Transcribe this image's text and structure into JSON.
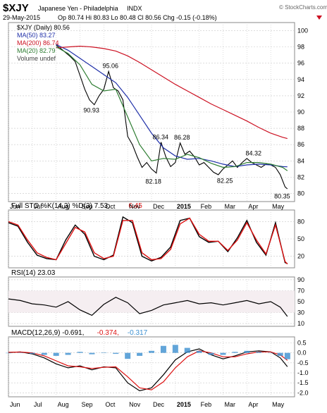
{
  "header": {
    "symbol": "$XJY",
    "name": "Japanese Yen - Philadelphia",
    "exchange": "INDX",
    "date": "29-May-2015",
    "quote": "Op 80.74  Hi 80.83  Lo 80.48  Cl 80.56  Chg -0.15 (-0.18%)",
    "change_icon": "down-arrow-icon",
    "brand": "© StockCharts.com"
  },
  "colors": {
    "price": "#000000",
    "ma50": "#1f2fa8",
    "ma200": "#cc1122",
    "ma20": "#2e7d32",
    "sto_k": "#000000",
    "sto_d": "#dd1111",
    "rsi": "#000000",
    "rsi_fill": "#dbb9c6",
    "macd": "#000000",
    "signal": "#dd1111",
    "hist": "#3b8fd0",
    "grid": "#c8c8c8"
  },
  "chart_data": [
    {
      "type": "line",
      "panel": "price",
      "legend": [
        "$XJY (Daily) 80.56",
        "MA(50) 83.27",
        "MA(200) 86.74",
        "MA(20) 82.79",
        "Volume undef"
      ],
      "yticks": [
        80,
        82,
        84,
        86,
        88,
        90,
        92,
        94,
        96,
        98,
        100
      ],
      "ylim": [
        79,
        101
      ],
      "xlim": [
        0,
        12.0
      ],
      "x_tick_labels": [
        "Jun",
        "Jul",
        "Aug",
        "Sep",
        "Oct",
        "Nov",
        "Dec",
        "2015",
        "Feb",
        "Mar",
        "Apr",
        "May"
      ],
      "x_tick_positions": [
        0,
        1,
        2,
        3,
        4,
        5,
        6,
        7,
        8,
        9,
        10,
        11
      ],
      "series": [
        {
          "name": "$XJY (Daily)",
          "x": [
            2.0,
            2.2,
            2.4,
            2.6,
            2.8,
            3.0,
            3.2,
            3.4,
            3.6,
            3.8,
            4.0,
            4.2,
            4.4,
            4.6,
            4.8,
            5.0,
            5.2,
            5.4,
            5.6,
            5.8,
            6.0,
            6.2,
            6.4,
            6.6,
            6.8,
            7.0,
            7.2,
            7.4,
            7.6,
            7.8,
            8.0,
            8.2,
            8.4,
            8.6,
            8.8,
            9.0,
            9.2,
            9.4,
            9.6,
            9.8,
            10.0,
            10.2,
            10.4,
            10.6,
            10.8,
            11.0,
            11.2,
            11.4,
            11.6,
            11.7
          ],
          "y": [
            98.2,
            97.8,
            97.3,
            96.8,
            96.2,
            94.5,
            92.8,
            91.5,
            90.9,
            92.0,
            92.8,
            95.0,
            93.0,
            92.6,
            91.5,
            87.0,
            86.0,
            84.5,
            83.2,
            83.8,
            83.0,
            82.5,
            86.3,
            84.5,
            83.3,
            83.8,
            86.2,
            84.8,
            85.2,
            84.5,
            83.5,
            83.8,
            83.2,
            82.6,
            82.3,
            83.0,
            83.5,
            84.0,
            83.2,
            83.8,
            84.3,
            83.8,
            83.5,
            83.2,
            83.6,
            83.5,
            83.2,
            82.3,
            80.8,
            80.56
          ]
        },
        {
          "name": "MA(50)",
          "x": [
            2.0,
            2.5,
            3.0,
            3.5,
            4.0,
            4.5,
            5.0,
            5.5,
            6.0,
            6.5,
            7.0,
            7.5,
            8.0,
            8.5,
            9.0,
            9.5,
            10.0,
            10.5,
            11.0,
            11.5,
            11.7
          ],
          "y": [
            98.3,
            97.6,
            96.6,
            95.6,
            94.6,
            93.6,
            91.8,
            89.6,
            87.4,
            85.6,
            84.6,
            84.2,
            84.3,
            84.0,
            83.6,
            83.3,
            83.5,
            83.6,
            83.5,
            83.3,
            83.27
          ]
        },
        {
          "name": "MA(200)",
          "x": [
            2.0,
            2.5,
            3.0,
            3.5,
            4.0,
            4.5,
            5.0,
            5.5,
            6.0,
            6.5,
            7.0,
            7.5,
            8.0,
            8.5,
            9.0,
            9.5,
            10.0,
            10.5,
            11.0,
            11.5,
            11.7
          ],
          "y": [
            97.9,
            98.0,
            98.1,
            98.0,
            97.8,
            97.5,
            96.9,
            96.1,
            95.2,
            94.3,
            93.4,
            92.6,
            91.8,
            91.0,
            90.3,
            89.6,
            88.9,
            88.1,
            87.4,
            86.9,
            86.74
          ]
        },
        {
          "name": "MA(20)",
          "x": [
            2.0,
            2.5,
            3.0,
            3.5,
            4.0,
            4.5,
            5.0,
            5.5,
            6.0,
            6.5,
            7.0,
            7.5,
            8.0,
            8.5,
            9.0,
            9.5,
            10.0,
            10.5,
            11.0,
            11.5,
            11.7
          ],
          "y": [
            98.0,
            97.2,
            95.8,
            93.4,
            92.6,
            92.8,
            89.4,
            86.0,
            84.0,
            84.3,
            84.2,
            84.8,
            84.4,
            83.7,
            83.2,
            83.3,
            83.8,
            83.8,
            83.6,
            83.2,
            82.79
          ]
        }
      ],
      "annotations": [
        {
          "text": "95.06",
          "x": 4.3,
          "y": 95.06,
          "pos": "above"
        },
        {
          "text": "90.93",
          "x": 3.5,
          "y": 90.93,
          "pos": "below"
        },
        {
          "text": "86.34",
          "x": 6.4,
          "y": 86.34,
          "pos": "above"
        },
        {
          "text": "86.28",
          "x": 7.3,
          "y": 86.28,
          "pos": "above"
        },
        {
          "text": "84.32",
          "x": 10.3,
          "y": 84.32,
          "pos": "above"
        },
        {
          "text": "82.18",
          "x": 6.1,
          "y": 82.18,
          "pos": "below"
        },
        {
          "text": "82.25",
          "x": 9.1,
          "y": 82.25,
          "pos": "below"
        },
        {
          "text": "80.35",
          "x": 11.5,
          "y": 80.35,
          "pos": "below"
        }
      ]
    },
    {
      "type": "line",
      "panel": "stochastic",
      "legend": [
        "Full STO %K(14,3) %D(3) 7.53,",
        "6.45"
      ],
      "yticks": [
        20,
        50,
        80
      ],
      "ylim": [
        0,
        100
      ],
      "xlim": [
        0,
        12.0
      ],
      "series": [
        {
          "name": "%K",
          "x": [
            0.0,
            0.4,
            0.8,
            1.2,
            1.6,
            2.0,
            2.4,
            2.8,
            3.2,
            3.6,
            4.0,
            4.4,
            4.8,
            5.2,
            5.6,
            6.0,
            6.4,
            6.8,
            7.2,
            7.6,
            8.0,
            8.4,
            8.8,
            9.2,
            9.6,
            10.0,
            10.4,
            10.8,
            11.2,
            11.6,
            11.7
          ],
          "y": [
            78,
            72,
            44,
            22,
            16,
            14,
            48,
            74,
            58,
            20,
            14,
            22,
            88,
            78,
            20,
            12,
            18,
            36,
            82,
            86,
            54,
            44,
            46,
            28,
            52,
            82,
            44,
            22,
            78,
            9,
            7.53
          ]
        },
        {
          "name": "%D",
          "x": [
            0.0,
            0.4,
            0.8,
            1.2,
            1.6,
            2.0,
            2.4,
            2.8,
            3.2,
            3.6,
            4.0,
            4.4,
            4.8,
            5.2,
            5.6,
            6.0,
            6.4,
            6.8,
            7.2,
            7.6,
            8.0,
            8.4,
            8.8,
            9.2,
            9.6,
            10.0,
            10.4,
            10.8,
            11.2,
            11.6,
            11.7
          ],
          "y": [
            80,
            74,
            48,
            26,
            18,
            14,
            42,
            70,
            62,
            26,
            16,
            20,
            82,
            82,
            26,
            14,
            16,
            32,
            76,
            86,
            58,
            46,
            46,
            30,
            48,
            78,
            48,
            24,
            74,
            11,
            6.45
          ]
        }
      ]
    },
    {
      "type": "line",
      "panel": "rsi",
      "legend": [
        "RSI(14) 23.03"
      ],
      "yticks": [
        10,
        30,
        50,
        70,
        90
      ],
      "ylim": [
        5,
        95
      ],
      "xlim": [
        0,
        12.0
      ],
      "series": [
        {
          "name": "RSI(14)",
          "x": [
            0.0,
            0.5,
            1.0,
            1.5,
            2.0,
            2.5,
            3.0,
            3.5,
            4.0,
            4.5,
            5.0,
            5.5,
            6.0,
            6.5,
            7.0,
            7.5,
            8.0,
            8.5,
            9.0,
            9.5,
            10.0,
            10.5,
            11.0,
            11.4,
            11.7
          ],
          "y": [
            55,
            52,
            46,
            44,
            40,
            50,
            35,
            25,
            45,
            58,
            48,
            28,
            34,
            44,
            48,
            52,
            46,
            48,
            44,
            48,
            52,
            46,
            50,
            40,
            23.03
          ]
        }
      ]
    },
    {
      "type": "line",
      "panel": "macd",
      "legend": [
        "MACD(12,26,9) -0.691,",
        "-0.374,",
        "-0.317"
      ],
      "yticks": [
        -2.0,
        -1.5,
        -1.0,
        -0.5,
        0.0,
        0.5
      ],
      "ylim": [
        -2.2,
        0.8
      ],
      "xlim": [
        0,
        12.0
      ],
      "series": [
        {
          "name": "MACD",
          "x": [
            0.0,
            0.5,
            1.0,
            1.5,
            2.0,
            2.5,
            3.0,
            3.5,
            4.0,
            4.5,
            5.0,
            5.5,
            6.0,
            6.5,
            7.0,
            7.5,
            8.0,
            8.5,
            9.0,
            9.5,
            10.0,
            10.5,
            11.0,
            11.4,
            11.7
          ],
          "y": [
            0.02,
            0.05,
            -0.05,
            -0.25,
            -0.55,
            -0.75,
            -0.65,
            -0.85,
            -0.7,
            -0.75,
            -1.5,
            -1.9,
            -1.75,
            -1.1,
            -0.35,
            0.05,
            0.2,
            -0.1,
            -0.3,
            -0.15,
            0.05,
            0.1,
            0.05,
            -0.25,
            -0.691
          ]
        },
        {
          "name": "Signal",
          "x": [
            0.0,
            0.5,
            1.0,
            1.5,
            2.0,
            2.5,
            3.0,
            3.5,
            4.0,
            4.5,
            5.0,
            5.5,
            6.0,
            6.5,
            7.0,
            7.5,
            8.0,
            8.5,
            9.0,
            9.5,
            10.0,
            10.5,
            11.0,
            11.4,
            11.7
          ],
          "y": [
            0.03,
            0.04,
            0.0,
            -0.15,
            -0.4,
            -0.65,
            -0.7,
            -0.78,
            -0.72,
            -0.7,
            -1.2,
            -1.75,
            -1.85,
            -1.45,
            -0.75,
            -0.2,
            0.1,
            0.0,
            -0.2,
            -0.2,
            -0.05,
            0.05,
            0.05,
            -0.1,
            -0.374
          ]
        },
        {
          "name": "Histogram",
          "x": [
            0.0,
            0.5,
            1.0,
            1.5,
            2.0,
            2.5,
            3.0,
            3.5,
            4.0,
            4.5,
            5.0,
            5.5,
            6.0,
            6.5,
            7.0,
            7.5,
            8.0,
            8.5,
            9.0,
            9.5,
            10.0,
            10.5,
            11.0,
            11.4,
            11.7
          ],
          "y": [
            -0.01,
            0.01,
            -0.05,
            -0.1,
            -0.15,
            -0.1,
            0.05,
            -0.07,
            0.02,
            -0.05,
            -0.3,
            -0.15,
            0.1,
            0.35,
            0.4,
            0.25,
            0.1,
            -0.1,
            -0.1,
            0.05,
            0.1,
            0.05,
            0.0,
            -0.15,
            -0.317
          ]
        }
      ]
    }
  ]
}
